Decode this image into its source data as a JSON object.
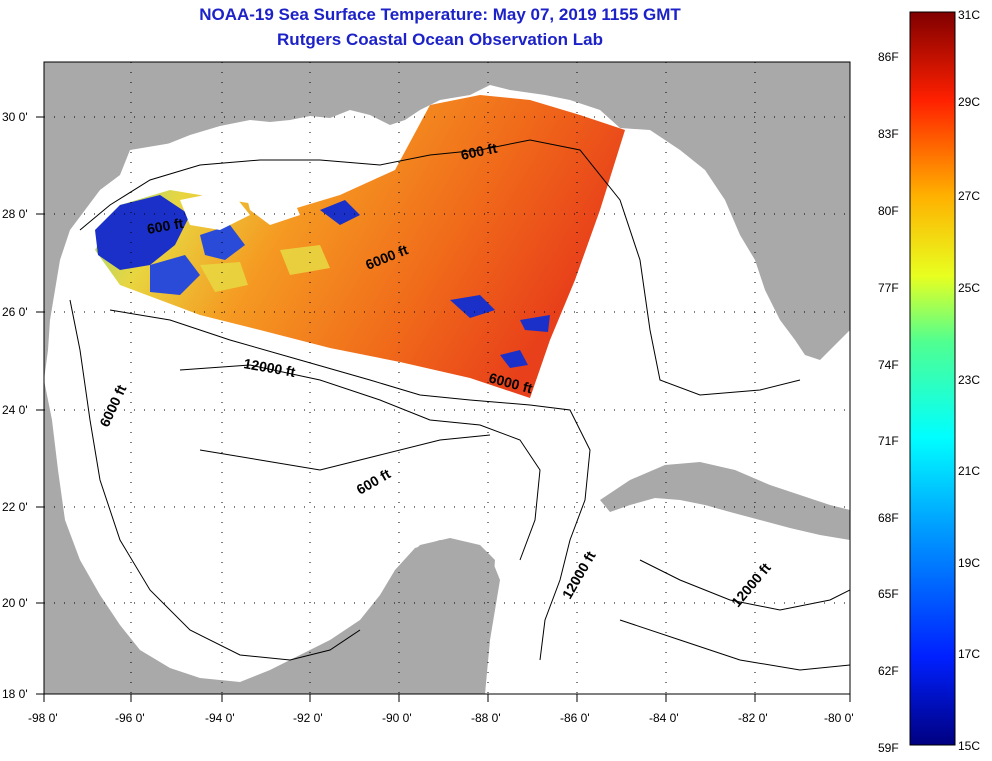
{
  "title": "NOAA-19 Sea Surface Temperature:  May 07, 2019 1155 GMT",
  "subtitle": "Rutgers Coastal Ocean Observation Lab",
  "lat_labels": [
    "30 0'",
    "28 0'",
    "26 0'",
    "24 0'",
    "22 0'",
    "20 0'",
    "18 0'"
  ],
  "lon_labels": [
    "-98 0'",
    "-96 0'",
    "-94 0'",
    "-92 0'",
    "-90 0'",
    "-88 0'",
    "-86 0'",
    "-84 0'",
    "-82 0'",
    "-80 0'"
  ],
  "colorbar": {
    "f_labels": [
      "86F",
      "83F",
      "80F",
      "77F",
      "74F",
      "71F",
      "68F",
      "65F",
      "62F",
      "59F"
    ],
    "c_labels": [
      "31C",
      "29C",
      "27C",
      "25C",
      "23C",
      "21C",
      "19C",
      "17C",
      "15C"
    ]
  },
  "contour_labels": {
    "a": "600 ft",
    "b": "600 ft",
    "c": "6000 ft",
    "d": "6000 ft",
    "e": "6000 ft",
    "f": "12000 ft",
    "g": "600 ft",
    "h": "12000 ft",
    "i": "12000 ft"
  },
  "colors": {
    "land": "#a9a9a9",
    "water": "#ffffff",
    "title": "#1c22c8",
    "warm": "#f07a1e",
    "cool": "#8ee07a",
    "cold": "#1b30c8"
  }
}
